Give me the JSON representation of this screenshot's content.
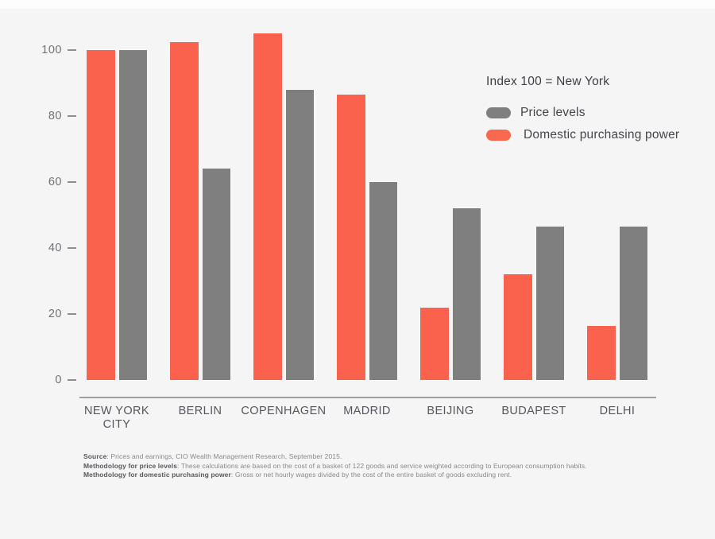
{
  "legend": {
    "title": "Index 100 = New York",
    "items": [
      {
        "label": "Price levels",
        "color": "#7f7f7f"
      },
      {
        "label": "Domestic purchasing power",
        "color": "#f8694f"
      }
    ]
  },
  "chart_data": {
    "type": "bar",
    "title": "",
    "xlabel": "",
    "ylabel": "",
    "categories": [
      "NEW YORK CITY",
      "BERLIN",
      "COPENHAGEN",
      "MADRID",
      "BEIJING",
      "BUDAPEST",
      "DELHI"
    ],
    "series": [
      {
        "name": "Domestic purchasing power",
        "color": "#fb624e",
        "values": [
          100,
          102.5,
          105,
          86.5,
          22,
          32,
          16.5
        ]
      },
      {
        "name": "Price levels",
        "color": "#7f7f7f",
        "values": [
          100,
          64,
          88,
          60,
          52,
          46.5,
          46.5
        ]
      }
    ],
    "yticks": [
      0,
      20,
      40,
      60,
      80,
      100
    ],
    "ylim": [
      0,
      110
    ],
    "grid": false,
    "legend_position": "right",
    "note": "Index 100 = New York"
  },
  "footer": {
    "lines": [
      {
        "bold": "Source",
        "text": ": Prices and earnings, CIO Wealth Management Research, September 2015."
      },
      {
        "bold": "Methodology for price levels",
        "text": ": These calculations are based on the cost of a basket of 122 goods and service weighted according to European consumption habits."
      },
      {
        "bold": "Methodology for domestic purchasing power",
        "text": ": Gross or net hourly wages divided by the cost of the entire basket of goods excluding rent."
      }
    ]
  }
}
